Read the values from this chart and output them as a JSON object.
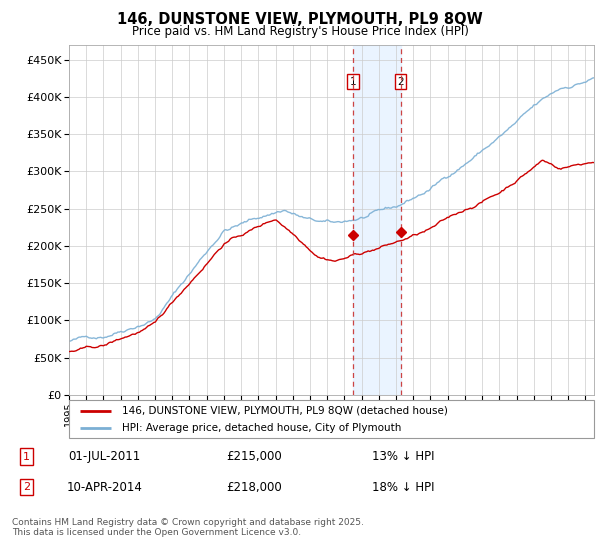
{
  "title": "146, DUNSTONE VIEW, PLYMOUTH, PL9 8QW",
  "subtitle": "Price paid vs. HM Land Registry's House Price Index (HPI)",
  "legend_line1": "146, DUNSTONE VIEW, PLYMOUTH, PL9 8QW (detached house)",
  "legend_line2": "HPI: Average price, detached house, City of Plymouth",
  "sale1_date": "01-JUL-2011",
  "sale1_price": "£215,000",
  "sale1_hpi": "13% ↓ HPI",
  "sale1_year": 2011.5,
  "sale2_date": "10-APR-2014",
  "sale2_price": "£218,000",
  "sale2_hpi": "18% ↓ HPI",
  "sale2_year": 2014.27,
  "sale1_value": 215000,
  "sale2_value": 218000,
  "hpi_color": "#7bafd4",
  "price_color": "#cc0000",
  "footnote": "Contains HM Land Registry data © Crown copyright and database right 2025.\nThis data is licensed under the Open Government Licence v3.0.",
  "ylim": [
    0,
    470000
  ],
  "yticks": [
    0,
    50000,
    100000,
    150000,
    200000,
    250000,
    300000,
    350000,
    400000,
    450000
  ],
  "xlim_start": 1995,
  "xlim_end": 2025.5
}
